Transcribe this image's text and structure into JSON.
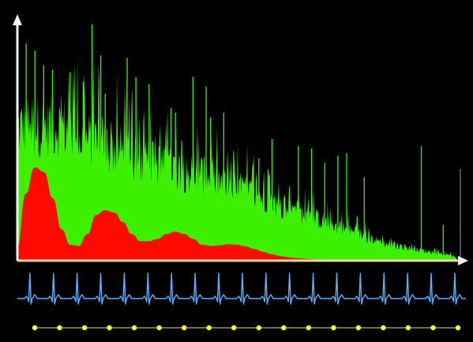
{
  "colors": {
    "background": "#000000",
    "axis": "#f2f2f2",
    "spectrum": "#3cf000",
    "envelope": "#ff0a00",
    "envelope_edge": "#e81400",
    "baseline": "#f4d8a8",
    "ecg": "#5fb0ff",
    "dot_line": "#e6e36a",
    "dot": "#ffff33",
    "edge_marker": "#9aa0a6"
  },
  "chart_data": [
    {
      "type": "area",
      "axes": {
        "x_ticks": "none",
        "y_ticks": "none",
        "arrows": true
      },
      "grid": false,
      "legend": "none",
      "xlim": [
        0,
        1
      ],
      "ylim": [
        0,
        1
      ],
      "series": [
        {
          "role": "spectrum",
          "x": [
            0,
            0.03,
            0.06,
            0.09,
            0.12,
            0.15,
            0.18,
            0.21,
            0.24,
            0.27,
            0.3,
            0.33,
            0.36,
            0.39,
            0.42,
            0.45,
            0.48,
            0.51,
            0.54,
            0.57,
            0.6,
            0.63,
            0.66,
            0.69,
            0.72,
            0.75,
            0.78,
            0.81,
            0.84,
            0.87,
            0.9,
            0.93,
            0.96,
            0.99,
            1.0
          ],
          "y": [
            0.55,
            0.58,
            0.56,
            0.57,
            0.55,
            0.5,
            0.51,
            0.47,
            0.46,
            0.42,
            0.41,
            0.4,
            0.39,
            0.37,
            0.36,
            0.34,
            0.31,
            0.3,
            0.28,
            0.26,
            0.22,
            0.21,
            0.19,
            0.17,
            0.15,
            0.13,
            0.11,
            0.09,
            0.07,
            0.06,
            0.05,
            0.04,
            0.03,
            0.02,
            0.01
          ],
          "peaks_x": [
            0.02,
            0.04,
            0.06,
            0.08,
            0.12,
            0.15,
            0.17,
            0.19,
            0.2,
            0.25,
            0.27,
            0.3,
            0.35,
            0.36,
            0.4,
            0.43,
            0.44,
            0.47,
            0.55,
            0.58,
            0.64,
            0.67,
            0.7,
            0.73,
            0.75,
            0.79,
            0.92,
            0.97
          ],
          "peaks_y": [
            0.91,
            0.88,
            0.82,
            0.8,
            0.79,
            0.75,
            0.99,
            0.86,
            0.7,
            0.85,
            0.77,
            0.74,
            0.64,
            0.62,
            0.77,
            0.73,
            0.6,
            0.62,
            0.43,
            0.51,
            0.48,
            0.47,
            0.41,
            0.44,
            0.45,
            0.35,
            0.48,
            0.15
          ]
        },
        {
          "role": "envelope",
          "x": [
            0,
            0.02,
            0.04,
            0.06,
            0.08,
            0.1,
            0.12,
            0.14,
            0.16,
            0.18,
            0.2,
            0.22,
            0.24,
            0.26,
            0.28,
            0.3,
            0.32,
            0.34,
            0.36,
            0.38,
            0.4,
            0.42,
            0.44,
            0.46,
            0.48,
            0.5,
            0.52,
            0.54,
            0.56,
            0.58,
            0.6,
            0.62,
            0.64,
            0.66,
            0.68,
            0.7,
            0.72,
            0.74,
            0.76,
            0.78,
            0.8,
            0.82,
            0.84,
            0.86,
            0.88,
            0.9,
            0.92,
            0.94,
            0.96,
            0.98,
            1.0
          ],
          "y": [
            0.05,
            0.28,
            0.39,
            0.37,
            0.26,
            0.13,
            0.065,
            0.06,
            0.11,
            0.19,
            0.21,
            0.2,
            0.16,
            0.11,
            0.08,
            0.08,
            0.09,
            0.11,
            0.12,
            0.11,
            0.09,
            0.065,
            0.06,
            0.062,
            0.067,
            0.065,
            0.058,
            0.047,
            0.035,
            0.025,
            0.017,
            0.012,
            0.008,
            0.006,
            0.004,
            0.003,
            0.002,
            0.002,
            0.001,
            0.001,
            0.001,
            0.0,
            0.0,
            0.0,
            0.0,
            0.0,
            0.0,
            0.0,
            0.0,
            0.0,
            0.0
          ]
        }
      ]
    },
    {
      "type": "line",
      "role": "ecg-strip",
      "grid": false,
      "legend": "none",
      "beats": 19
    },
    {
      "type": "scatter",
      "role": "dot-strip",
      "grid": false,
      "legend": "none",
      "points": 18
    }
  ]
}
